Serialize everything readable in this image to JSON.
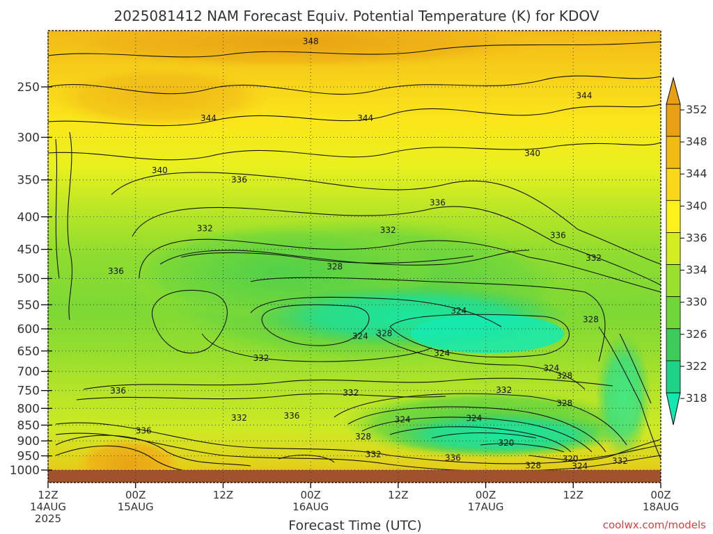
{
  "chart_data": {
    "type": "heatmap",
    "title": "2025081412 NAM Forecast Equiv. Potential Temperature (K) for KDOV",
    "xlabel": "Forecast Time (UTC)",
    "ylabel": "",
    "credit": "coolwx.com/models",
    "y_axis": {
      "ticks": [
        250,
        300,
        350,
        400,
        450,
        500,
        550,
        600,
        650,
        700,
        750,
        800,
        850,
        900,
        950,
        1000
      ],
      "range": [
        200,
        1025
      ],
      "scale": "log-pressure",
      "grid": true
    },
    "x_axis": {
      "ticks": [
        {
          "line1": "12Z",
          "line2": "14AUG",
          "line3": "2025"
        },
        {
          "line1": "00Z",
          "line2": "15AUG",
          "line3": ""
        },
        {
          "line1": "12Z",
          "line2": "",
          "line3": ""
        },
        {
          "line1": "00Z",
          "line2": "16AUG",
          "line3": ""
        },
        {
          "line1": "12Z",
          "line2": "",
          "line3": ""
        },
        {
          "line1": "00Z",
          "line2": "17AUG",
          "line3": ""
        },
        {
          "line1": "12Z",
          "line2": "",
          "line3": ""
        },
        {
          "line1": "00Z",
          "line2": "18AUG",
          "line3": ""
        }
      ],
      "hours": [
        0,
        12,
        24,
        36,
        48,
        60,
        72,
        84
      ],
      "range": [
        0,
        84
      ],
      "grid": true
    },
    "colorbar": {
      "ticks": [
        352,
        348,
        344,
        340,
        336,
        334,
        330,
        326,
        322,
        318
      ],
      "colors": [
        "#e7a012",
        "#f2ba14",
        "#f9d81b",
        "#fbf21c",
        "#d3ec22",
        "#9be02c",
        "#6fd63a",
        "#3fcb5a",
        "#1ed386",
        "#12e8b0"
      ]
    },
    "contour_labels": [
      {
        "text": "348",
        "hour": 36.0,
        "p": 212
      },
      {
        "text": "344",
        "hour": 22.0,
        "p": 280
      },
      {
        "text": "344",
        "hour": 43.5,
        "p": 280
      },
      {
        "text": "344",
        "hour": 73.5,
        "p": 258
      },
      {
        "text": "340",
        "hour": 15.3,
        "p": 338
      },
      {
        "text": "340",
        "hour": 66.4,
        "p": 318
      },
      {
        "text": "336",
        "hour": 26.2,
        "p": 350
      },
      {
        "text": "336",
        "hour": 53.4,
        "p": 380
      },
      {
        "text": "336",
        "hour": 69.9,
        "p": 428
      },
      {
        "text": "336",
        "hour": 9.3,
        "p": 487
      },
      {
        "text": "336",
        "hour": 9.6,
        "p": 751
      },
      {
        "text": "336",
        "hour": 13.1,
        "p": 867
      },
      {
        "text": "336",
        "hour": 33.4,
        "p": 822
      },
      {
        "text": "336",
        "hour": 55.5,
        "p": 957
      },
      {
        "text": "332",
        "hour": 21.5,
        "p": 417
      },
      {
        "text": "332",
        "hour": 46.6,
        "p": 420
      },
      {
        "text": "332",
        "hour": 74.8,
        "p": 464
      },
      {
        "text": "332",
        "hour": 29.2,
        "p": 667
      },
      {
        "text": "332",
        "hour": 41.5,
        "p": 756
      },
      {
        "text": "332",
        "hour": 62.5,
        "p": 749
      },
      {
        "text": "332",
        "hour": 26.2,
        "p": 828
      },
      {
        "text": "332",
        "hour": 44.6,
        "p": 945
      },
      {
        "text": "332",
        "hour": 78.4,
        "p": 968
      },
      {
        "text": "328",
        "hour": 39.3,
        "p": 479
      },
      {
        "text": "328",
        "hour": 74.4,
        "p": 580
      },
      {
        "text": "328",
        "hour": 46.1,
        "p": 610
      },
      {
        "text": "328",
        "hour": 70.8,
        "p": 711
      },
      {
        "text": "328",
        "hour": 70.8,
        "p": 785
      },
      {
        "text": "328",
        "hour": 43.2,
        "p": 886
      },
      {
        "text": "328",
        "hour": 66.5,
        "p": 984
      },
      {
        "text": "324",
        "hour": 56.3,
        "p": 562
      },
      {
        "text": "324",
        "hour": 42.8,
        "p": 616
      },
      {
        "text": "324",
        "hour": 54.0,
        "p": 655
      },
      {
        "text": "324",
        "hour": 69.0,
        "p": 692
      },
      {
        "text": "324",
        "hour": 48.6,
        "p": 833
      },
      {
        "text": "324",
        "hour": 58.4,
        "p": 829
      },
      {
        "text": "324",
        "hour": 72.9,
        "p": 986
      },
      {
        "text": "320",
        "hour": 62.8,
        "p": 907
      },
      {
        "text": "320",
        "hour": 71.6,
        "p": 960
      }
    ],
    "surface_band": {
      "p": [
        1000,
        1025
      ],
      "color": "#a0522d"
    },
    "notes_visible": true
  }
}
